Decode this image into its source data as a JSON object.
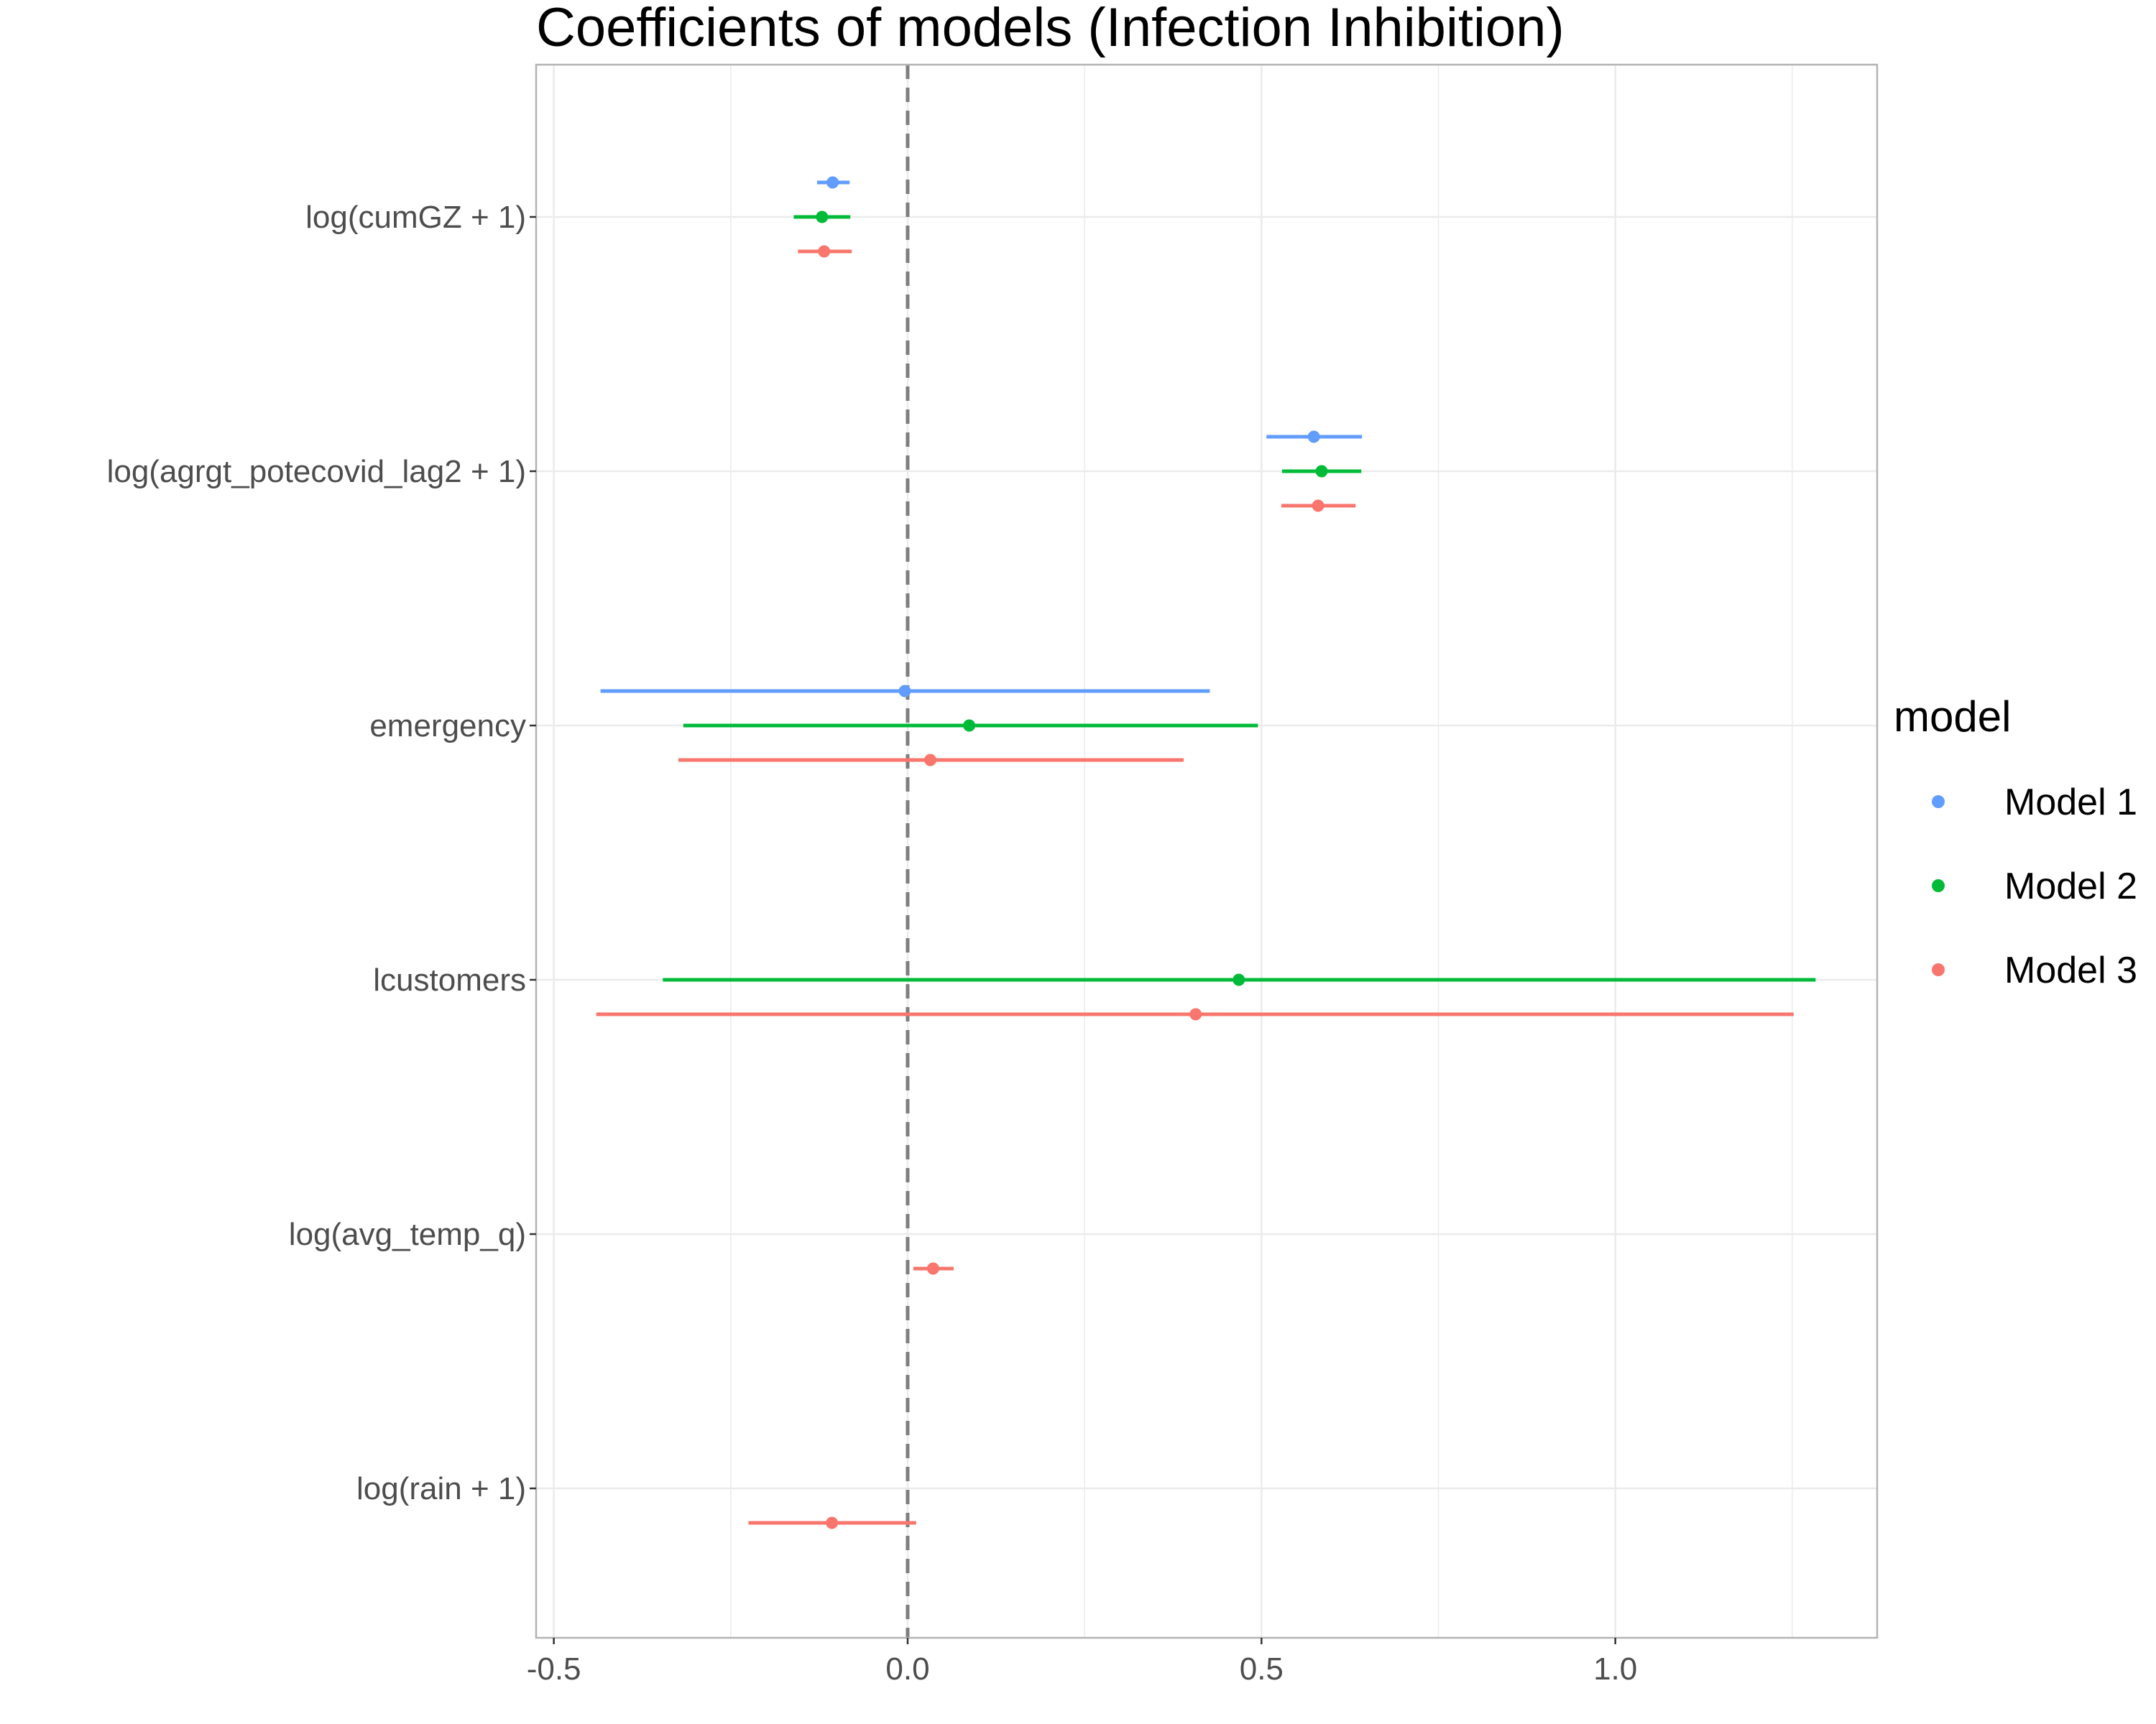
{
  "chart_data": {
    "type": "coefficient-plot",
    "title": "Coefficients of models (Infection Inhibition)",
    "xlabel": "",
    "ylabel": "",
    "xlim": [
      -0.525,
      1.37
    ],
    "x_ticks": [
      -0.5,
      0.0,
      0.5,
      1.0
    ],
    "x_tick_labels": [
      "-0.5",
      "0.0",
      "0.5",
      "1.0"
    ],
    "reference_line": 0,
    "grid": true,
    "terms": [
      "log(cumGZ + 1)",
      "log(agrgt_potecovid_lag2 + 1)",
      "emergency",
      "lcustomers",
      "log(avg_temp_q)",
      "log(rain + 1)"
    ],
    "legend": {
      "title": "model",
      "position": "right"
    },
    "series": [
      {
        "name": "Model 1",
        "color": "#619CFF",
        "points": [
          {
            "term": "log(cumGZ + 1)",
            "estimate": -0.106,
            "low": -0.128,
            "high": -0.082
          },
          {
            "term": "log(agrgt_potecovid_lag2 + 1)",
            "estimate": 0.574,
            "low": 0.507,
            "high": 0.642
          },
          {
            "term": "emergency",
            "estimate": -0.004,
            "low": -0.434,
            "high": 0.427
          }
        ]
      },
      {
        "name": "Model 2",
        "color": "#00BA38",
        "points": [
          {
            "term": "log(cumGZ + 1)",
            "estimate": -0.121,
            "low": -0.161,
            "high": -0.081
          },
          {
            "term": "log(agrgt_potecovid_lag2 + 1)",
            "estimate": 0.585,
            "low": 0.529,
            "high": 0.641
          },
          {
            "term": "emergency",
            "estimate": 0.087,
            "low": -0.317,
            "high": 0.495
          },
          {
            "term": "lcustomers",
            "estimate": 0.468,
            "low": -0.346,
            "high": 1.283
          }
        ]
      },
      {
        "name": "Model 3",
        "color": "#F8766D",
        "points": [
          {
            "term": "log(cumGZ + 1)",
            "estimate": -0.118,
            "low": -0.155,
            "high": -0.079
          },
          {
            "term": "log(agrgt_potecovid_lag2 + 1)",
            "estimate": 0.58,
            "low": 0.528,
            "high": 0.633
          },
          {
            "term": "emergency",
            "estimate": 0.032,
            "low": -0.324,
            "high": 0.39
          },
          {
            "term": "lcustomers",
            "estimate": 0.407,
            "low": -0.44,
            "high": 1.252
          },
          {
            "term": "log(avg_temp_q)",
            "estimate": 0.036,
            "low": 0.008,
            "high": 0.065
          },
          {
            "term": "log(rain + 1)",
            "estimate": -0.107,
            "low": -0.225,
            "high": 0.012
          }
        ]
      }
    ]
  }
}
